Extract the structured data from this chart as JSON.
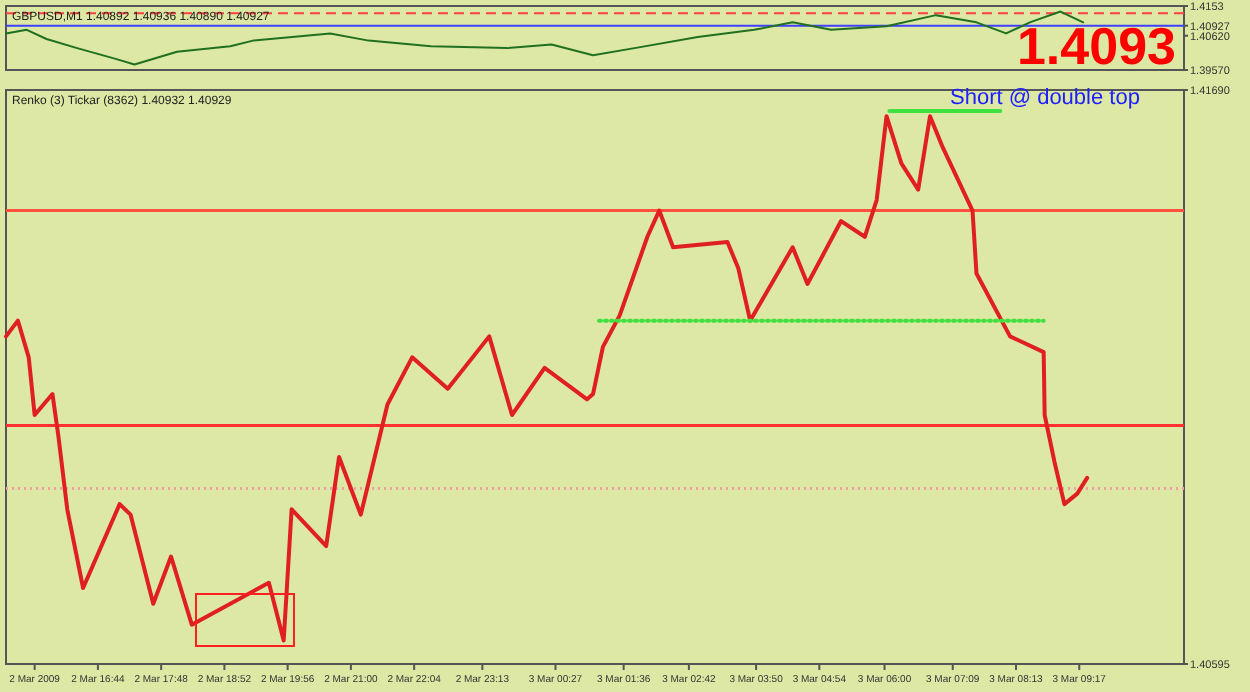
{
  "chart_data": [
    {
      "type": "line",
      "title": "GBPUSD,M1 1.40892 1.40936 1.40890 1.40927",
      "annotations": [
        "1.4093"
      ],
      "tick_labels": "y",
      "xlim": [
        "2009-03-02T15:11",
        "2009-03-03T11:03"
      ],
      "ylim": [
        1.3957,
        1.4153
      ],
      "yticks": [
        1.4153,
        {
          "value": 1.40927,
          "label": "1.40927"
        },
        {
          "value": 1.4062,
          "label": "1.40620"
        },
        {
          "value": 1.3957,
          "label": "1.39570"
        }
      ],
      "ref_lines": [
        {
          "axis": "y",
          "value": 1.40927,
          "color": "#4040ff"
        },
        {
          "axis": "y",
          "value": 1.4131,
          "color": "#ff4040",
          "line_style": "dashed"
        }
      ],
      "series": [
        {
          "color": "#207020",
          "x": [
            "2009-03-02T15:11",
            "2009-03-02T15:32",
            "2009-03-02T15:52",
            "2009-03-02T16:23",
            "2009-03-02T17:02",
            "2009-03-02T17:21",
            "2009-03-02T18:04",
            "2009-03-02T18:58",
            "2009-03-02T19:21",
            "2009-03-02T20:39",
            "2009-03-02T21:18",
            "2009-03-02T22:21",
            "2009-03-02T23:38",
            "2009-03-03T00:23",
            "2009-03-03T01:05",
            "2009-03-03T01:47",
            "2009-03-03T02:51",
            "2009-03-03T03:48",
            "2009-03-03T04:27",
            "2009-03-03T05:06",
            "2009-03-03T06:02",
            "2009-03-03T06:52",
            "2009-03-03T07:33",
            "2009-03-03T08:03",
            "2009-03-03T08:27",
            "2009-03-03T08:58",
            "2009-03-03T09:21"
          ],
          "values": [
            1.4069,
            1.408,
            1.4052,
            1.4024,
            1.3991,
            1.3974,
            1.4013,
            1.403,
            1.4047,
            1.4069,
            1.4047,
            1.403,
            1.4024,
            1.4035,
            1.4002,
            1.4024,
            1.4058,
            1.408,
            1.4103,
            1.408,
            1.4091,
            1.4125,
            1.4103,
            1.4069,
            1.4103,
            1.4136,
            1.4103
          ]
        }
      ]
    },
    {
      "type": "line",
      "title": "Renko (3) Tickar (8362) 1.40932 1.40929",
      "annotations": [
        "Short @ double top"
      ],
      "xlim": [
        "2009-03-02T15:11",
        "2009-03-03T11:03"
      ],
      "ylim": [
        1.40595,
        1.4169
      ],
      "yticks": [
        {
          "value": 1.4169,
          "label": "1.41690"
        },
        {
          "value": 1.40595,
          "label": "1.40595"
        }
      ],
      "xticks": [
        {
          "value": "2009-03-02T15:40",
          "label": "2 Mar 2009"
        },
        {
          "value": "2009-03-02T16:44",
          "label": "2 Mar 16:44"
        },
        {
          "value": "2009-03-02T17:48",
          "label": "2 Mar 17:48"
        },
        {
          "value": "2009-03-02T18:52",
          "label": "2 Mar 18:52"
        },
        {
          "value": "2009-03-02T19:56",
          "label": "2 Mar 19:56"
        },
        {
          "value": "2009-03-02T21:00",
          "label": "2 Mar 21:00"
        },
        {
          "value": "2009-03-02T22:04",
          "label": "2 Mar 22:04"
        },
        {
          "value": "2009-03-02T23:13",
          "label": "2 Mar 23:13"
        },
        {
          "value": "2009-03-03T00:27",
          "label": "3 Mar 00:27"
        },
        {
          "value": "2009-03-03T01:36",
          "label": "3 Mar 01:36"
        },
        {
          "value": "2009-03-03T02:42",
          "label": "3 Mar 02:42"
        },
        {
          "value": "2009-03-03T03:50",
          "label": "3 Mar 03:50"
        },
        {
          "value": "2009-03-03T04:54",
          "label": "3 Mar 04:54"
        },
        {
          "value": "2009-03-03T06:00",
          "label": "3 Mar 06:00"
        },
        {
          "value": "2009-03-03T07:09",
          "label": "3 Mar 07:09"
        },
        {
          "value": "2009-03-03T08:13",
          "label": "3 Mar 08:13"
        },
        {
          "value": "2009-03-03T09:17",
          "label": "3 Mar 09:17"
        }
      ],
      "ref_lines": [
        {
          "axis": "y",
          "value": 1.4146,
          "color": "#ff5040"
        },
        {
          "axis": "y",
          "value": 1.4105,
          "color": "#ff3030"
        },
        {
          "axis": "y",
          "value": 1.4093,
          "color": "#f0a0a0",
          "line_style": "dotted"
        }
      ],
      "series": [
        {
          "color": "#e02020",
          "x": [
            "2009-03-02T15:11",
            "2009-03-02T15:23",
            "2009-03-02T15:34",
            "2009-03-02T15:40",
            "2009-03-02T15:58",
            "2009-03-02T16:04",
            "2009-03-02T16:13",
            "2009-03-02T16:29",
            "2009-03-02T17:06",
            "2009-03-02T17:17",
            "2009-03-02T17:40",
            "2009-03-02T17:58",
            "2009-03-02T18:19",
            "2009-03-02T19:37",
            "2009-03-02T19:52",
            "2009-03-02T20:00",
            "2009-03-02T20:35",
            "2009-03-02T20:48",
            "2009-03-02T21:10",
            "2009-03-02T21:37",
            "2009-03-02T22:02",
            "2009-03-02T22:38",
            "2009-03-02T23:20",
            "2009-03-02T23:43",
            "2009-03-03T00:16",
            "2009-03-03T00:59",
            "2009-03-03T01:05",
            "2009-03-03T01:15",
            "2009-03-03T01:32",
            "2009-03-03T02:00",
            "2009-03-03T02:12",
            "2009-03-03T02:26",
            "2009-03-03T03:21",
            "2009-03-03T03:32",
            "2009-03-03T03:44",
            "2009-03-03T04:27",
            "2009-03-03T04:42",
            "2009-03-03T05:16",
            "2009-03-03T05:40",
            "2009-03-03T05:52",
            "2009-03-03T06:02",
            "2009-03-03T06:17",
            "2009-03-03T06:34",
            "2009-03-03T06:46",
            "2009-03-03T06:59",
            "2009-03-03T07:29",
            "2009-03-03T07:33",
            "2009-03-03T08:07",
            "2009-03-03T08:41",
            "2009-03-03T08:42",
            "2009-03-03T08:52",
            "2009-03-03T09:02",
            "2009-03-03T09:15",
            "2009-03-03T09:25"
          ],
          "values": [
            1.4122,
            1.4125,
            1.4118,
            1.4107,
            1.4111,
            1.4103,
            1.4089,
            1.4074,
            1.409,
            1.4088,
            1.4071,
            1.408,
            1.4067,
            1.4075,
            1.4064,
            1.4089,
            1.4082,
            1.4099,
            1.4088,
            1.4109,
            1.4118,
            1.4112,
            1.4122,
            1.4107,
            1.4116,
            1.411,
            1.4111,
            1.412,
            1.4126,
            1.4141,
            1.4146,
            1.4139,
            1.414,
            1.4135,
            1.4125,
            1.4139,
            1.4132,
            1.4144,
            1.4141,
            1.4148,
            1.4164,
            1.4155,
            1.415,
            1.4164,
            1.4158,
            1.4146,
            1.4134,
            1.4122,
            1.4119,
            1.4107,
            1.4098,
            1.409,
            1.4092,
            1.4095
          ]
        },
        {
          "color": "#40e040",
          "x": [
            "2009-03-03T06:05",
            "2009-03-03T07:57"
          ],
          "values": [
            1.4165,
            1.4165
          ]
        },
        {
          "color": "#40e040",
          "line_style": "dotted",
          "x": [
            "2009-03-03T01:11",
            "2009-03-03T08:41"
          ],
          "values": [
            1.4125,
            1.4125
          ]
        }
      ]
    }
  ]
}
